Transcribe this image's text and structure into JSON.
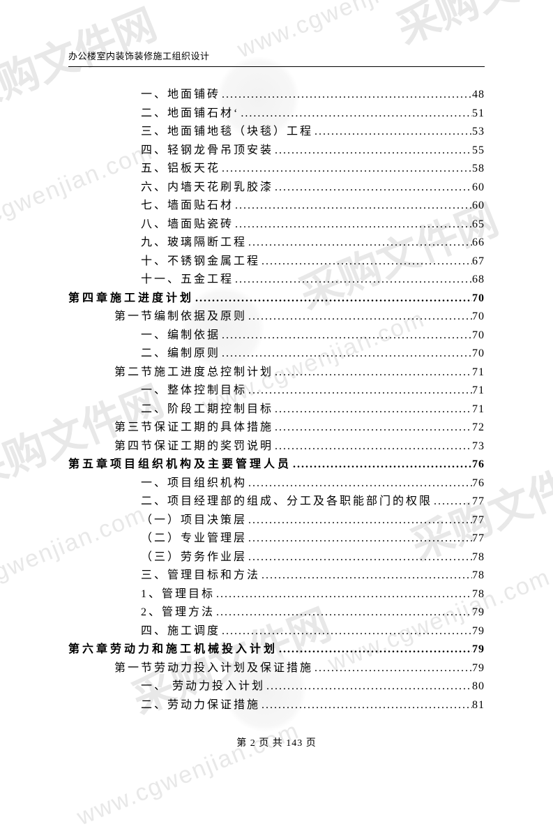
{
  "header": "办公楼室内装饰装修施工组织设计",
  "footer": {
    "prefix": "第",
    "current": "2",
    "mid": "页 共",
    "total": "143",
    "suffix": "页"
  },
  "toc": [
    {
      "level": "item",
      "label": "一、地面铺砖",
      "page": "48"
    },
    {
      "level": "item",
      "label": "二、地面铺石材‘",
      "page": "51"
    },
    {
      "level": "item",
      "label": "三、地面铺地毯（块毯）工程",
      "page": "53"
    },
    {
      "level": "item",
      "label": "四、轻钢龙骨吊顶安装",
      "page": "55"
    },
    {
      "level": "item",
      "label": "五、铝板天花",
      "page": "58"
    },
    {
      "level": "item",
      "label": "六、内墙天花刷乳胶漆",
      "page": "60"
    },
    {
      "level": "item",
      "label": "七、墙面贴石材",
      "page": "60"
    },
    {
      "level": "item",
      "label": "八、墙面贴瓷砖",
      "page": "65"
    },
    {
      "level": "item",
      "label": "九、玻璃隔断工程",
      "page": "66"
    },
    {
      "level": "item",
      "label": "十、不锈钢金属工程",
      "page": "67"
    },
    {
      "level": "item",
      "label": "十一、五金工程",
      "page": "68"
    },
    {
      "level": "chapter",
      "label": "第四章施工进度计划",
      "page": "70"
    },
    {
      "level": "section",
      "label": "第一节编制依据及原则",
      "page": "70"
    },
    {
      "level": "item",
      "label": "一、编制依据",
      "page": "70"
    },
    {
      "level": "item",
      "label": "二、编制原则",
      "page": "70"
    },
    {
      "level": "section",
      "label": "第二节施工进度总控制计划",
      "page": "71"
    },
    {
      "level": "item",
      "label": "一、整体控制目标",
      "page": "71"
    },
    {
      "level": "item",
      "label": "二、阶段工期控制目标",
      "page": "71"
    },
    {
      "level": "section",
      "label": "第三节保证工期的具体措施",
      "page": "72"
    },
    {
      "level": "section",
      "label": "第四节保证工期的奖罚说明",
      "page": "73"
    },
    {
      "level": "chapter",
      "label": "第五章项目组织机构及主要管理人员",
      "page": "76"
    },
    {
      "level": "item",
      "label": "一、项目组织机构",
      "page": "76"
    },
    {
      "level": "item",
      "label": "二、项目经理部的组成、分工及各职能部门的权限",
      "page": "77"
    },
    {
      "level": "sub",
      "label": "（一）项目决策层",
      "page": "77"
    },
    {
      "level": "sub",
      "label": "（二）专业管理层",
      "page": "77"
    },
    {
      "level": "sub",
      "label": "（三）劳务作业层",
      "page": "78"
    },
    {
      "level": "item",
      "label": "三、管理目标和方法",
      "page": "78"
    },
    {
      "level": "sub",
      "label": "1、管理目标",
      "page": "78"
    },
    {
      "level": "sub",
      "label": "2、管理方法",
      "page": "79"
    },
    {
      "level": "item",
      "label": "四、施工调度",
      "page": "79"
    },
    {
      "level": "chapter",
      "label": "第六章劳动力和施工机械投入计划",
      "page": "79"
    },
    {
      "level": "section",
      "label": "第一节劳动力投入计划及保证措施",
      "page": "79"
    },
    {
      "level": "item",
      "label": "一、 劳动力投入计划",
      "page": "80"
    },
    {
      "level": "item",
      "label": "二、劳动力保证措施",
      "page": "81"
    }
  ],
  "watermark": {
    "url": "www.cgwenjian.com",
    "logo_text": "采购文件网"
  }
}
